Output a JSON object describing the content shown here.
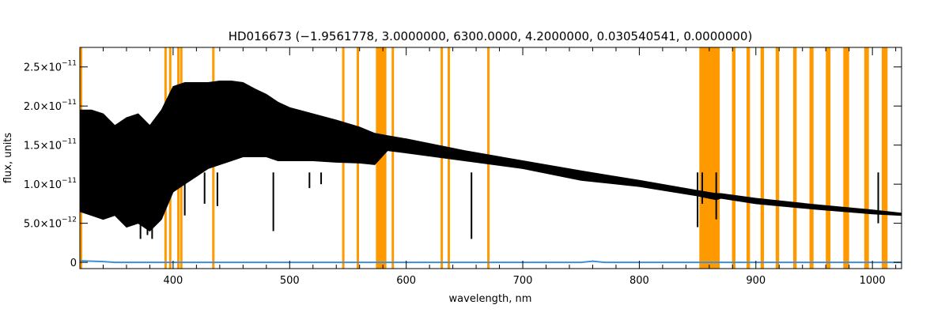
{
  "chart_data": {
    "type": "line",
    "title": "HD016673    (−1.9561778, 3.0000000, 6300.0000, 4.2000000, 0.030540541, 0.0000000)",
    "xlabel": "wavelength, nm",
    "ylabel": "flux, units",
    "xlim": [
      320,
      1025
    ],
    "ylim": [
      -8e-13,
      2.75e-11
    ],
    "x_ticks": [
      {
        "value": 400,
        "label": "400"
      },
      {
        "value": 500,
        "label": "500"
      },
      {
        "value": 600,
        "label": "600"
      },
      {
        "value": 700,
        "label": "700"
      },
      {
        "value": 800,
        "label": "800"
      },
      {
        "value": 900,
        "label": "900"
      },
      {
        "value": 1000,
        "label": "1000"
      }
    ],
    "y_ticks": [
      {
        "value": 0,
        "mantissa": "0",
        "exponent": ""
      },
      {
        "value": 5e-12,
        "mantissa": "5.0×10",
        "exponent": "−12"
      },
      {
        "value": 1e-11,
        "mantissa": "1.0×10",
        "exponent": "−11"
      },
      {
        "value": 1.5e-11,
        "mantissa": "1.5×10",
        "exponent": "−11"
      },
      {
        "value": 2e-11,
        "mantissa": "2.0×10",
        "exponent": "−11"
      },
      {
        "value": 2.5e-11,
        "mantissa": "2.5×10",
        "exponent": "−11"
      }
    ],
    "masked_regions_nm": [
      [
        320,
        321.5
      ],
      [
        392.5,
        394.5
      ],
      [
        396.5,
        398.5
      ],
      [
        403.5,
        405
      ],
      [
        406,
        408
      ],
      [
        433.5,
        435.5
      ],
      [
        545,
        547
      ],
      [
        557.5,
        559
      ],
      [
        574,
        583
      ],
      [
        587.5,
        589.5
      ],
      [
        629.5,
        631.5
      ],
      [
        635.5,
        637.5
      ],
      [
        669.5,
        671.5
      ],
      [
        851.5,
        869
      ],
      [
        879.5,
        882.5
      ],
      [
        892,
        895
      ],
      [
        904,
        907
      ],
      [
        917,
        920
      ],
      [
        932,
        935
      ],
      [
        946,
        949.5
      ],
      [
        960,
        964
      ],
      [
        975,
        980
      ],
      [
        993,
        997
      ],
      [
        1008,
        1013
      ]
    ],
    "grid": false,
    "series": [
      {
        "color": "#000000",
        "x": [
          320,
          330,
          340,
          350,
          360,
          370,
          380,
          390,
          400,
          410,
          420,
          430,
          440,
          450,
          460,
          470,
          480,
          490,
          500,
          520,
          540,
          560,
          573,
          584,
          600,
          650,
          700,
          750,
          800,
          850,
          866,
          870,
          900,
          950,
          1000,
          1025
        ],
        "y_top": [
          1.95e-11,
          1.95e-11,
          1.9e-11,
          1.75e-11,
          1.85e-11,
          1.9e-11,
          1.75e-11,
          1.95e-11,
          2.25e-11,
          2.3e-11,
          2.3e-11,
          2.3e-11,
          2.32e-11,
          2.32e-11,
          2.3e-11,
          2.22e-11,
          2.15e-11,
          2.05e-11,
          1.98e-11,
          1.9e-11,
          1.82e-11,
          1.73e-11,
          1.65e-11,
          1.62e-11,
          1.58e-11,
          1.43e-11,
          1.3e-11,
          1.17e-11,
          1.05e-11,
          9.2e-12,
          8.8e-12,
          8.8e-12,
          8.2e-12,
          7.4e-12,
          6.7e-12,
          6.3e-12
        ],
        "y_bottom": [
          6.5e-12,
          6e-12,
          5.5e-12,
          6e-12,
          4.5e-12,
          5e-12,
          4e-12,
          5.5e-12,
          9e-12,
          1e-11,
          1.1e-11,
          1.2e-11,
          1.25e-11,
          1.3e-11,
          1.35e-11,
          1.35e-11,
          1.35e-11,
          1.3e-11,
          1.3e-11,
          1.3e-11,
          1.28e-11,
          1.27e-11,
          1.25e-11,
          1.43e-11,
          1.4e-11,
          1.3e-11,
          1.2e-11,
          1.05e-11,
          9.7e-12,
          8.5e-12,
          8e-12,
          8.2e-12,
          7.5e-12,
          6.8e-12,
          6.2e-12,
          6e-12
        ]
      },
      {
        "color": "#3f8fd8",
        "x": [
          320,
          330,
          340,
          350,
          400,
          500,
          600,
          700,
          750,
          760,
          770,
          800,
          900,
          1000,
          1025
        ],
        "y": [
          2e-13,
          1.5e-13,
          1e-13,
          0.0,
          0.0,
          0.0,
          0.0,
          0.0,
          0.0,
          1.5e-13,
          0.0,
          0.0,
          0.0,
          0.0,
          0.0
        ]
      }
    ],
    "absorption_lines": [
      {
        "x": 372,
        "y": 3e-12
      },
      {
        "x": 378,
        "y": 3.5e-12
      },
      {
        "x": 382,
        "y": 3e-12
      },
      {
        "x": 385,
        "y": 5e-12
      },
      {
        "x": 388,
        "y": 5.5e-12
      },
      {
        "x": 410,
        "y": 6e-12
      },
      {
        "x": 427,
        "y": 7.5e-12
      },
      {
        "x": 438,
        "y": 7.2e-12
      },
      {
        "x": 486,
        "y": 4e-12
      },
      {
        "x": 517,
        "y": 9.5e-12
      },
      {
        "x": 527,
        "y": 1e-11
      },
      {
        "x": 656,
        "y": 3e-12
      },
      {
        "x": 850,
        "y": 4.5e-12
      },
      {
        "x": 854,
        "y": 7.5e-12
      },
      {
        "x": 866,
        "y": 5.5e-12
      },
      {
        "x": 1005,
        "y": 5e-12
      }
    ]
  }
}
